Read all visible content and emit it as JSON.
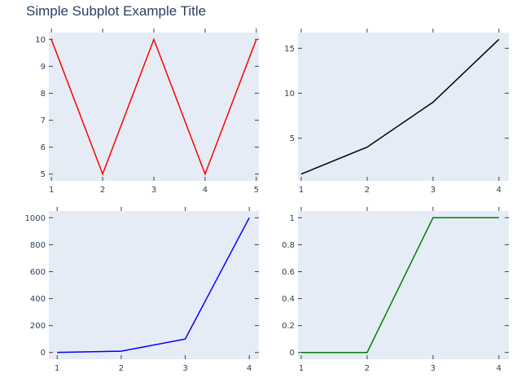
{
  "title": "Simple Subplot Example Title",
  "chart_data": [
    {
      "type": "line",
      "x": [
        1,
        2,
        3,
        4,
        5
      ],
      "y": [
        10,
        5,
        10,
        5,
        10
      ],
      "color": "#ff0000",
      "xticks": [
        1,
        2,
        3,
        4,
        5
      ],
      "yticks": [
        5,
        6,
        7,
        8,
        9,
        10
      ],
      "xlim": [
        0.95,
        5.05
      ],
      "ylim": [
        4.75,
        10.25
      ],
      "grid": false
    },
    {
      "type": "line",
      "x": [
        1,
        2,
        3,
        4
      ],
      "y": [
        1,
        4,
        9,
        16
      ],
      "color": "#000000",
      "xticks": [
        1,
        2,
        3,
        4
      ],
      "yticks": [
        5,
        10,
        15
      ],
      "xlim": [
        0.95,
        4.15
      ],
      "ylim": [
        0.25,
        16.75
      ],
      "grid": false
    },
    {
      "type": "line",
      "x": [
        1,
        2,
        3,
        4
      ],
      "y": [
        1,
        10,
        100,
        1000
      ],
      "color": "#0000ff",
      "xticks": [
        1,
        2,
        3,
        4
      ],
      "yticks": [
        0,
        200,
        400,
        600,
        800,
        1000
      ],
      "xlim": [
        0.87,
        4.15
      ],
      "ylim": [
        -50,
        1050
      ],
      "grid": false
    },
    {
      "type": "line",
      "x": [
        1,
        2,
        3,
        4
      ],
      "y": [
        0,
        0,
        1,
        1
      ],
      "color": "#008000",
      "xticks": [
        1,
        2,
        3,
        4
      ],
      "yticks": [
        0,
        0.2,
        0.4,
        0.6,
        0.8,
        1
      ],
      "ytick_labels": [
        "0",
        "0.2",
        "0.4",
        "0.6",
        "0.8",
        "1"
      ],
      "xlim": [
        0.95,
        4.15
      ],
      "ylim": [
        -0.05,
        1.05
      ],
      "grid": false
    }
  ]
}
